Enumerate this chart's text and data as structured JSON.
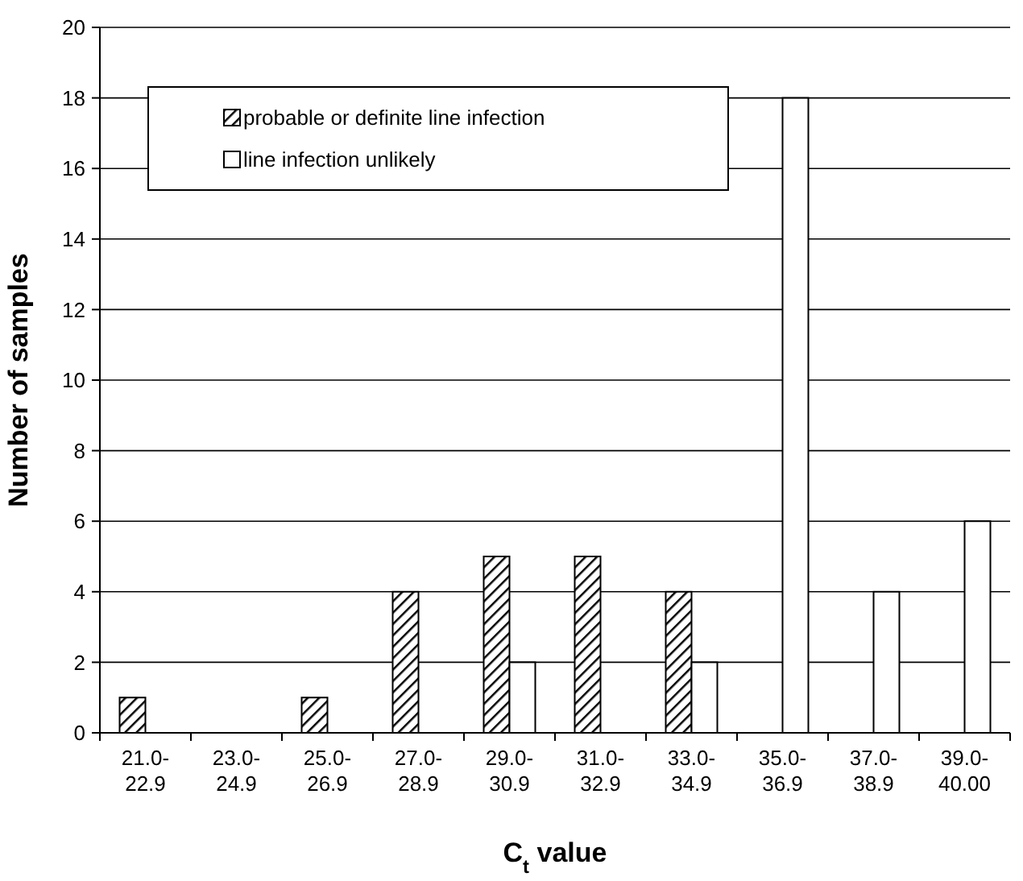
{
  "chart_data": {
    "type": "bar",
    "xlabel": "C$_{t}$ value",
    "ylabel": "Number of samples",
    "categories": [
      "21.0-22.9",
      "23.0-24.9",
      "25.0-26.9",
      "27.0-28.9",
      "29.0-30.9",
      "31.0-32.9",
      "33.0-34.9",
      "35.0-36.9",
      "37.0-38.9",
      "39.0-40.00"
    ],
    "series": [
      {
        "name": "probable or definite line infection",
        "color": "#000000",
        "values": [
          1,
          0,
          1,
          4,
          5,
          5,
          4,
          0,
          0,
          0
        ]
      },
      {
        "name": "line infection unlikely",
        "color": "#ffffff",
        "values": [
          0,
          0,
          0,
          0,
          2,
          0,
          2,
          18,
          4,
          6
        ]
      }
    ],
    "ylim": [
      0,
      20
    ],
    "yticks": [
      0,
      2,
      4,
      6,
      8,
      10,
      12,
      14,
      16,
      18,
      20
    ],
    "grid": "y",
    "legend": "top left"
  }
}
